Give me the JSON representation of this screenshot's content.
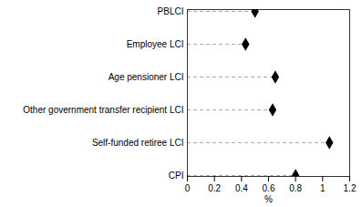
{
  "chart_data": {
    "type": "lollipop",
    "orientation": "horizontal",
    "categories": [
      "PBLCI",
      "Employee LCI",
      "Age pensioner LCI",
      "Other government transfer recipient LCI",
      "Self-funded retiree LCI",
      "CPI"
    ],
    "values": [
      0.5,
      0.43,
      0.65,
      0.63,
      1.05,
      0.8
    ],
    "xlabel": "%",
    "xlim": [
      0,
      1.2
    ],
    "xticks": [
      0,
      0.2,
      0.4,
      0.6,
      0.8,
      1.0,
      1.2
    ],
    "color": "black",
    "marker": "diamond",
    "line_style": "dashed",
    "grid": false
  }
}
